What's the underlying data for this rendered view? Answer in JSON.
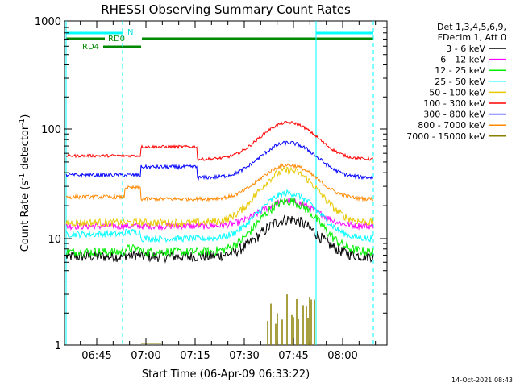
{
  "chart_data": {
    "type": "line",
    "title": "RHESSI Observing Summary Count Rates",
    "xlabel": "Start Time (06-Apr-09 06:33:22)",
    "ylabel_main": "Count Rate (s",
    "ylabel_sup1": "-1",
    "ylabel_mid": " detector",
    "ylabel_sup2": "-1",
    "ylabel_end": ")",
    "yscale": "log",
    "ylim": [
      1,
      1000
    ],
    "x_ticks": [
      "06:45",
      "07:00",
      "07:15",
      "07:30",
      "07:45",
      "08:00"
    ],
    "y_ticks": [
      "1",
      "10",
      "100",
      "1000"
    ],
    "legend_header": [
      "Det 1,3,4,5,6,9,",
      "FDecim 1, Att 0"
    ],
    "series": [
      {
        "name": "3 - 6 keV",
        "color": "#000000"
      },
      {
        "name": "6 - 12 keV",
        "color": "#ff00ff"
      },
      {
        "name": "12 - 25 keV",
        "color": "#00ee00"
      },
      {
        "name": "25 - 50 keV",
        "color": "#00ffff"
      },
      {
        "name": "50 - 100 keV",
        "color": "#e8c800"
      },
      {
        "name": "100 - 300 keV",
        "color": "#ff0000"
      },
      {
        "name": "300 - 800 keV",
        "color": "#0000ff"
      },
      {
        "name": "800 - 7000 keV",
        "color": "#ff8800"
      },
      {
        "name": "7000 - 15000 keV",
        "color": "#8b8000"
      }
    ],
    "flags": {
      "N": "N",
      "RD0": "RD0",
      "RD4": "RD4"
    },
    "legend_placement": "right",
    "grid": false
  },
  "timestamp": "14-Oct-2021 08:43"
}
